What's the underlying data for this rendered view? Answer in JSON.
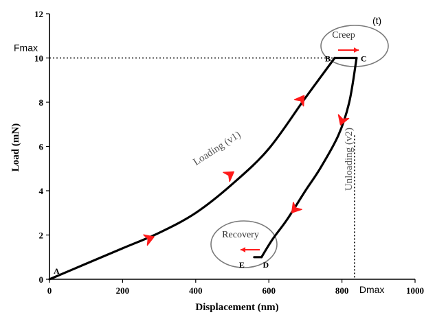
{
  "chart_data": {
    "type": "line",
    "xlabel": "Displacement (nm)",
    "ylabel": "Load (mN)",
    "xlim": [
      0,
      1000
    ],
    "ylim": [
      0,
      12
    ],
    "xticks": [
      0,
      200,
      400,
      600,
      800,
      1000
    ],
    "xtick_labels": [
      "0",
      "200",
      "400",
      "600",
      "800",
      "1000"
    ],
    "yticks": [
      0,
      2,
      4,
      6,
      8,
      10,
      12
    ],
    "ytick_labels": [
      "0",
      "2",
      "4",
      "6",
      "8",
      "10",
      "12"
    ],
    "grid": false,
    "series": [
      {
        "segment": "loading",
        "x": [
          0,
          100,
          200,
          300,
          400,
          500,
          600,
          700,
          780
        ],
        "y": [
          0,
          0.7,
          1.4,
          2.1,
          3.0,
          4.3,
          5.9,
          8.2,
          10.0
        ]
      },
      {
        "segment": "creep",
        "x": [
          780,
          840
        ],
        "y": [
          10.0,
          10.0
        ]
      },
      {
        "segment": "unloading",
        "x": [
          840,
          820,
          790,
          740,
          700,
          650,
          610,
          580
        ],
        "y": [
          10.0,
          8.0,
          6.5,
          5.0,
          4.0,
          2.7,
          1.8,
          1.0
        ]
      },
      {
        "segment": "hold",
        "x": [
          580,
          560
        ],
        "y": [
          1.0,
          1.0
        ]
      }
    ],
    "points": [
      {
        "label": "A",
        "x": 0,
        "y": 0
      },
      {
        "label": "B",
        "x": 780,
        "y": 10.0
      },
      {
        "label": "C",
        "x": 840,
        "y": 10.0
      },
      {
        "label": "D",
        "x": 580,
        "y": 1.0
      },
      {
        "label": "E",
        "x": 560,
        "y": 1.0
      }
    ],
    "reference_lines": [
      {
        "label": "Fmax",
        "orientation": "horizontal",
        "y": 10.0
      },
      {
        "label": "Dmax",
        "orientation": "vertical",
        "x": 840
      }
    ],
    "annotations": {
      "loading": "Loading (v1)",
      "unloading": "Unloading (v2)",
      "creep": "Creep",
      "recovery": "Recovery",
      "t": "(t)"
    },
    "arrow_color": "#ff1a1a",
    "line_color": "#000000"
  }
}
